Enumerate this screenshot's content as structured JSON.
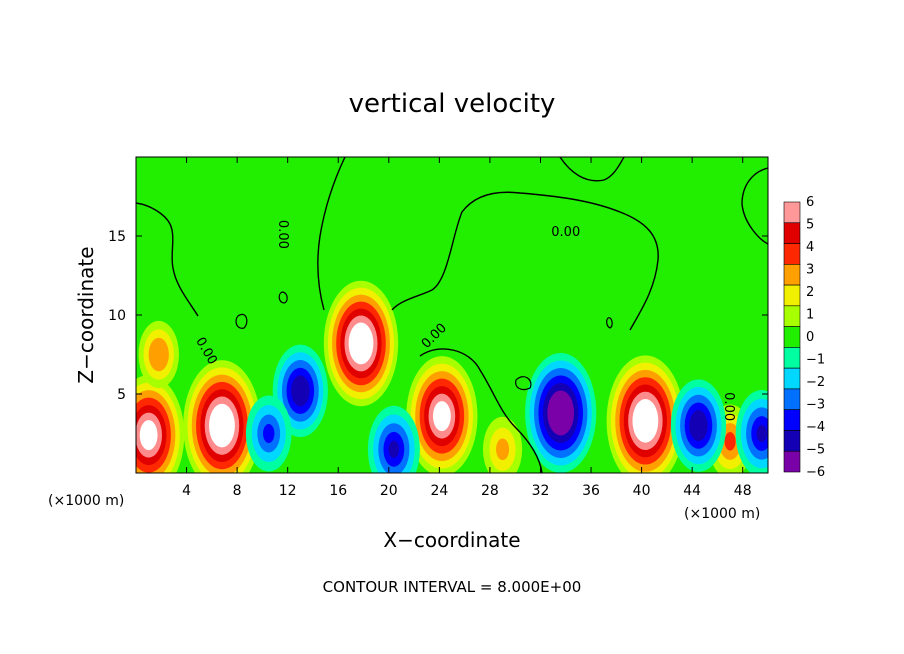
{
  "chart_data": {
    "type": "heatmap",
    "title": "vertical velocity",
    "xlabel": "X−coordinate",
    "ylabel": "Z−coordinate",
    "x_unit_left": "(×1000 m)",
    "x_unit_right": "(×1000 m)",
    "footnote": "CONTOUR INTERVAL = 8.000E+00",
    "xlim": [
      0,
      50
    ],
    "ylim": [
      0,
      20
    ],
    "x_ticks": [
      4,
      8,
      12,
      16,
      20,
      24,
      28,
      32,
      36,
      40,
      44,
      48
    ],
    "y_ticks": [
      5,
      10,
      15
    ],
    "colorbar": {
      "range": [
        -6,
        6
      ],
      "ticks": [
        "6",
        "5",
        "4",
        "3",
        "2",
        "1",
        "0",
        "−1",
        "−2",
        "−3",
        "−4",
        "−5",
        "−6"
      ],
      "colors": [
        "#7a00a8",
        "#1400b4",
        "#0000ff",
        "#0070ff",
        "#00d8ff",
        "#00ffa0",
        "#22ee00",
        "#a8ff00",
        "#f0f000",
        "#ffa000",
        "#ff2800",
        "#e00000",
        "#ff8c8c",
        "#ffffff"
      ]
    },
    "zero_contour_label": "0.00",
    "features": [
      {
        "x": 6.8,
        "z": 3.0,
        "w": 9,
        "kind": "updraft"
      },
      {
        "x": 17.8,
        "z": 8.2,
        "w": 8.5,
        "kind": "updraft"
      },
      {
        "x": 24.2,
        "z": 3.6,
        "w": 8,
        "kind": "updraft"
      },
      {
        "x": 40.3,
        "z": 3.3,
        "w": 9,
        "kind": "updraft"
      },
      {
        "x": 1.0,
        "z": 2.4,
        "w": 8,
        "kind": "updraft"
      },
      {
        "x": 1.8,
        "z": 7.5,
        "w": 3.2,
        "kind": "updraft"
      },
      {
        "x": 47.0,
        "z": 2.0,
        "w": 3.8,
        "kind": "updraft"
      },
      {
        "x": 29.0,
        "z": 1.5,
        "w": 3.0,
        "kind": "updraft"
      },
      {
        "x": 33.6,
        "z": 3.8,
        "w": -8,
        "kind": "downdraft"
      },
      {
        "x": 13.0,
        "z": 5.2,
        "w": -5.5,
        "kind": "downdraft"
      },
      {
        "x": 44.5,
        "z": 3.0,
        "w": -5.5,
        "kind": "downdraft"
      },
      {
        "x": 20.4,
        "z": 1.5,
        "w": -5,
        "kind": "downdraft"
      },
      {
        "x": 10.5,
        "z": 2.5,
        "w": -4,
        "kind": "downdraft"
      },
      {
        "x": 49.5,
        "z": 2.5,
        "w": -5,
        "kind": "downdraft"
      }
    ]
  }
}
